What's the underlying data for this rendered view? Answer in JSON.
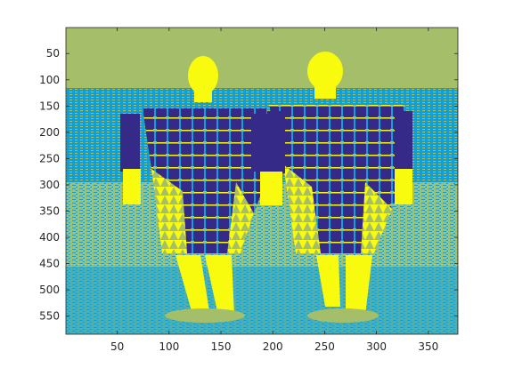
{
  "figure": {
    "description_colors": {
      "dark": "#352a87",
      "light": "#0fa0d8",
      "mid": "#a5be6a",
      "bright": "#f9fb0e",
      "axis": "#262626",
      "background": "#ffffff"
    }
  },
  "chart_data": {
    "type": "heatmap",
    "title": "",
    "xlabel": "",
    "ylabel": "",
    "xlim": [
      0.5,
      378.5
    ],
    "ylim": [
      0.5,
      584.5
    ],
    "y_reversed": true,
    "x_ticks": [
      50,
      100,
      150,
      200,
      250,
      300,
      350
    ],
    "x_tick_labels": [
      "50",
      "100",
      "150",
      "200",
      "250",
      "300",
      "350"
    ],
    "y_ticks": [
      50,
      100,
      150,
      200,
      250,
      300,
      350,
      400,
      450,
      500,
      550
    ],
    "y_tick_labels": [
      "50",
      "100",
      "150",
      "200",
      "250",
      "300",
      "350",
      "400",
      "450",
      "500",
      "550"
    ],
    "grid": false,
    "legend": "none",
    "colormap": "parula, 4 levels",
    "levels": [
      "#352a87",
      "#0fa0d8",
      "#a5be6a",
      "#f9fb0e"
    ]
  }
}
